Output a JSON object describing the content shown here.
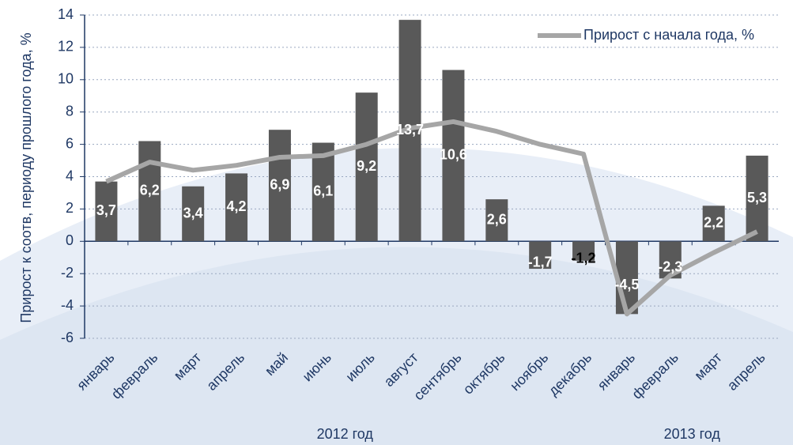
{
  "chart_data": {
    "type": "bar",
    "ylabel": "Прирост к соотв, периоду прошлого года, %",
    "categories": [
      "январь",
      "февраль",
      "март",
      "апрель",
      "май",
      "июнь",
      "июль",
      "август",
      "сентябрь",
      "октябрь",
      "ноябрь",
      "декабрь",
      "январь",
      "февраль",
      "март",
      "апрель"
    ],
    "groups": [
      {
        "label": "2012 год",
        "start": 0,
        "end": 11
      },
      {
        "label": "2013 год",
        "start": 12,
        "end": 15
      }
    ],
    "series": [
      {
        "type": "bar",
        "color": "#595959",
        "values": [
          3.7,
          6.2,
          3.4,
          4.2,
          6.9,
          6.1,
          9.2,
          13.7,
          10.6,
          2.6,
          -1.7,
          -1.2,
          -4.5,
          -2.3,
          2.2,
          5.3
        ],
        "value_labels": [
          "3,7",
          "6,2",
          "3,4",
          "4,2",
          "6,9",
          "6,1",
          "9,2",
          "13,7",
          "10,6",
          "2,6",
          "-1,7",
          "-1,2",
          "-4,5",
          "-2,3",
          "2,2",
          "5,3"
        ],
        "value_label_colors": [
          "#fff",
          "#fff",
          "#fff",
          "#fff",
          "#fff",
          "#fff",
          "#fff",
          "#fff",
          "#fff",
          "#fff",
          "#fff",
          "#000",
          "#fff",
          "#fff",
          "#fff",
          "#fff"
        ]
      },
      {
        "type": "line",
        "name": "Прирост с начала года, %",
        "color": "#a6a6a6",
        "values": [
          3.7,
          4.9,
          4.4,
          4.7,
          5.2,
          5.3,
          6.0,
          7.0,
          7.4,
          6.8,
          6.0,
          5.4,
          -4.5,
          -2.1,
          -0.7,
          0.6
        ]
      }
    ],
    "ylim": [
      -6,
      14
    ],
    "yticks": [
      -6,
      -4,
      -2,
      0,
      2,
      4,
      6,
      8,
      10,
      12,
      14
    ],
    "grid": true,
    "legend": "top-right"
  }
}
